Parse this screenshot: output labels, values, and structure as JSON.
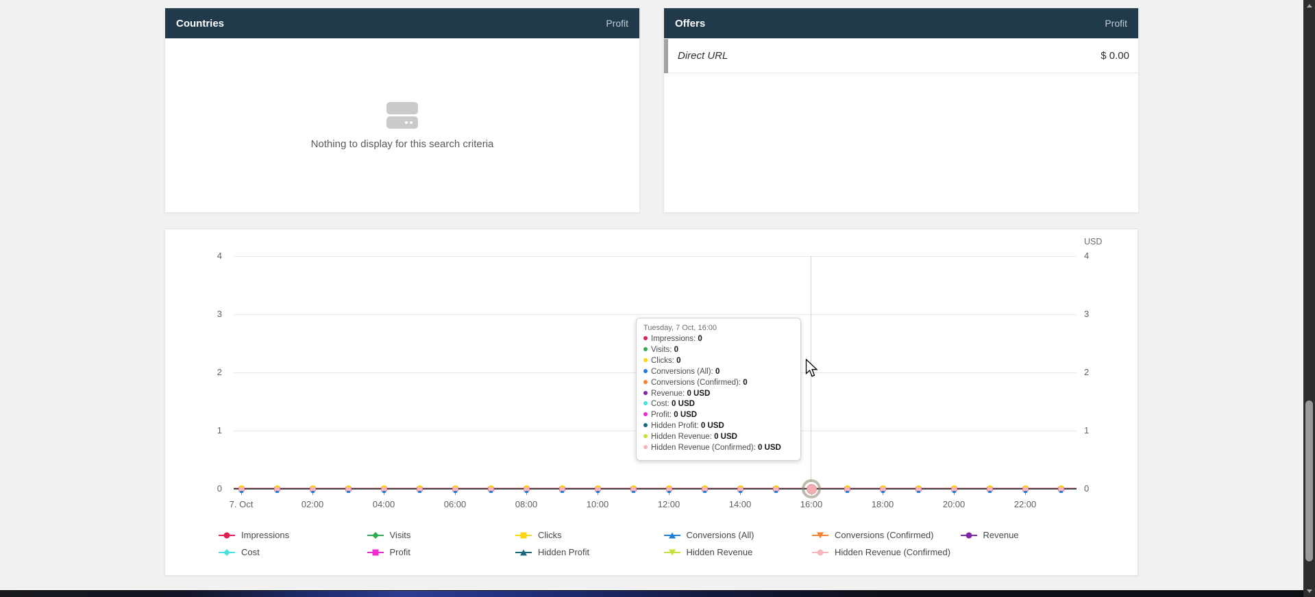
{
  "panels": {
    "countries": {
      "title": "Countries",
      "column_label": "Profit",
      "empty_text": "Nothing to display for this search criteria"
    },
    "offers": {
      "title": "Offers",
      "column_label": "Profit",
      "rows": [
        {
          "name": "Direct URL",
          "value": "$ 0.00"
        }
      ]
    }
  },
  "chart_data": {
    "type": "line",
    "title": "",
    "unit_label": "USD",
    "ylim": [
      0,
      4
    ],
    "yticks": [
      0,
      1,
      2,
      3,
      4
    ],
    "x_points": 24,
    "x_tick_labels": [
      "7. Oct",
      "02:00",
      "04:00",
      "06:00",
      "08:00",
      "10:00",
      "12:00",
      "14:00",
      "16:00",
      "18:00",
      "20:00",
      "22:00"
    ],
    "hovered_index": 16,
    "grid": true,
    "legend_position": "bottom",
    "series": [
      {
        "name": "Impressions",
        "color": "#df2050",
        "marker": "circle",
        "values": [
          0,
          0,
          0,
          0,
          0,
          0,
          0,
          0,
          0,
          0,
          0,
          0,
          0,
          0,
          0,
          0,
          0,
          0,
          0,
          0,
          0,
          0,
          0,
          0
        ]
      },
      {
        "name": "Visits",
        "color": "#2fab4f",
        "marker": "diamond",
        "values": [
          0,
          0,
          0,
          0,
          0,
          0,
          0,
          0,
          0,
          0,
          0,
          0,
          0,
          0,
          0,
          0,
          0,
          0,
          0,
          0,
          0,
          0,
          0,
          0
        ]
      },
      {
        "name": "Clicks",
        "color": "#ffd60e",
        "marker": "square",
        "values": [
          0,
          0,
          0,
          0,
          0,
          0,
          0,
          0,
          0,
          0,
          0,
          0,
          0,
          0,
          0,
          0,
          0,
          0,
          0,
          0,
          0,
          0,
          0,
          0
        ]
      },
      {
        "name": "Conversions (All)",
        "color": "#1e7fd8",
        "marker": "triangle-up",
        "values": [
          0,
          0,
          0,
          0,
          0,
          0,
          0,
          0,
          0,
          0,
          0,
          0,
          0,
          0,
          0,
          0,
          0,
          0,
          0,
          0,
          0,
          0,
          0,
          0
        ]
      },
      {
        "name": "Conversions (Confirmed)",
        "color": "#f58231",
        "marker": "triangle-down",
        "values": [
          0,
          0,
          0,
          0,
          0,
          0,
          0,
          0,
          0,
          0,
          0,
          0,
          0,
          0,
          0,
          0,
          0,
          0,
          0,
          0,
          0,
          0,
          0,
          0
        ]
      },
      {
        "name": "Revenue",
        "color": "#8023a8",
        "marker": "circle",
        "values": [
          0,
          0,
          0,
          0,
          0,
          0,
          0,
          0,
          0,
          0,
          0,
          0,
          0,
          0,
          0,
          0,
          0,
          0,
          0,
          0,
          0,
          0,
          0,
          0
        ]
      },
      {
        "name": "Cost",
        "color": "#45e3e0",
        "marker": "diamond",
        "values": [
          0,
          0,
          0,
          0,
          0,
          0,
          0,
          0,
          0,
          0,
          0,
          0,
          0,
          0,
          0,
          0,
          0,
          0,
          0,
          0,
          0,
          0,
          0,
          0
        ]
      },
      {
        "name": "Profit",
        "color": "#ef2bd2",
        "marker": "square",
        "values": [
          0,
          0,
          0,
          0,
          0,
          0,
          0,
          0,
          0,
          0,
          0,
          0,
          0,
          0,
          0,
          0,
          0,
          0,
          0,
          0,
          0,
          0,
          0,
          0
        ]
      },
      {
        "name": "Hidden Profit",
        "color": "#17697c",
        "marker": "triangle-up",
        "values": [
          0,
          0,
          0,
          0,
          0,
          0,
          0,
          0,
          0,
          0,
          0,
          0,
          0,
          0,
          0,
          0,
          0,
          0,
          0,
          0,
          0,
          0,
          0,
          0
        ]
      },
      {
        "name": "Hidden Revenue",
        "color": "#c4e23a",
        "marker": "triangle-down",
        "values": [
          0,
          0,
          0,
          0,
          0,
          0,
          0,
          0,
          0,
          0,
          0,
          0,
          0,
          0,
          0,
          0,
          0,
          0,
          0,
          0,
          0,
          0,
          0,
          0
        ]
      },
      {
        "name": "Hidden Revenue (Confirmed)",
        "color": "#f4b8bc",
        "marker": "circle",
        "values": [
          0,
          0,
          0,
          0,
          0,
          0,
          0,
          0,
          0,
          0,
          0,
          0,
          0,
          0,
          0,
          0,
          0,
          0,
          0,
          0,
          0,
          0,
          0,
          0
        ]
      }
    ]
  },
  "tooltip": {
    "title": "Tuesday, 7 Oct, 16:00",
    "rows": [
      {
        "label": "Impressions",
        "value": "0",
        "color": "#df2050"
      },
      {
        "label": "Visits",
        "value": "0",
        "color": "#2fab4f"
      },
      {
        "label": "Clicks",
        "value": "0",
        "color": "#ffd60e"
      },
      {
        "label": "Conversions (All)",
        "value": "0",
        "color": "#1e7fd8"
      },
      {
        "label": "Conversions (Confirmed)",
        "value": "0",
        "color": "#f58231"
      },
      {
        "label": "Revenue",
        "value": "0 USD",
        "color": "#8023a8"
      },
      {
        "label": "Cost",
        "value": "0 USD",
        "color": "#45e3e0"
      },
      {
        "label": "Profit",
        "value": "0 USD",
        "color": "#ef2bd2"
      },
      {
        "label": "Hidden Profit",
        "value": "0 USD",
        "color": "#17697c"
      },
      {
        "label": "Hidden Revenue",
        "value": "0 USD",
        "color": "#c4e23a"
      },
      {
        "label": "Hidden Revenue (Confirmed)",
        "value": "0 USD",
        "color": "#f4b8bc"
      }
    ]
  },
  "colors": {
    "header_bg": "#203a4b",
    "page_bg": "#f1f1f2",
    "accent_pink": "#f5b6bb",
    "grid_line": "#e6e6e6",
    "axis_line": "#3d3f44"
  }
}
